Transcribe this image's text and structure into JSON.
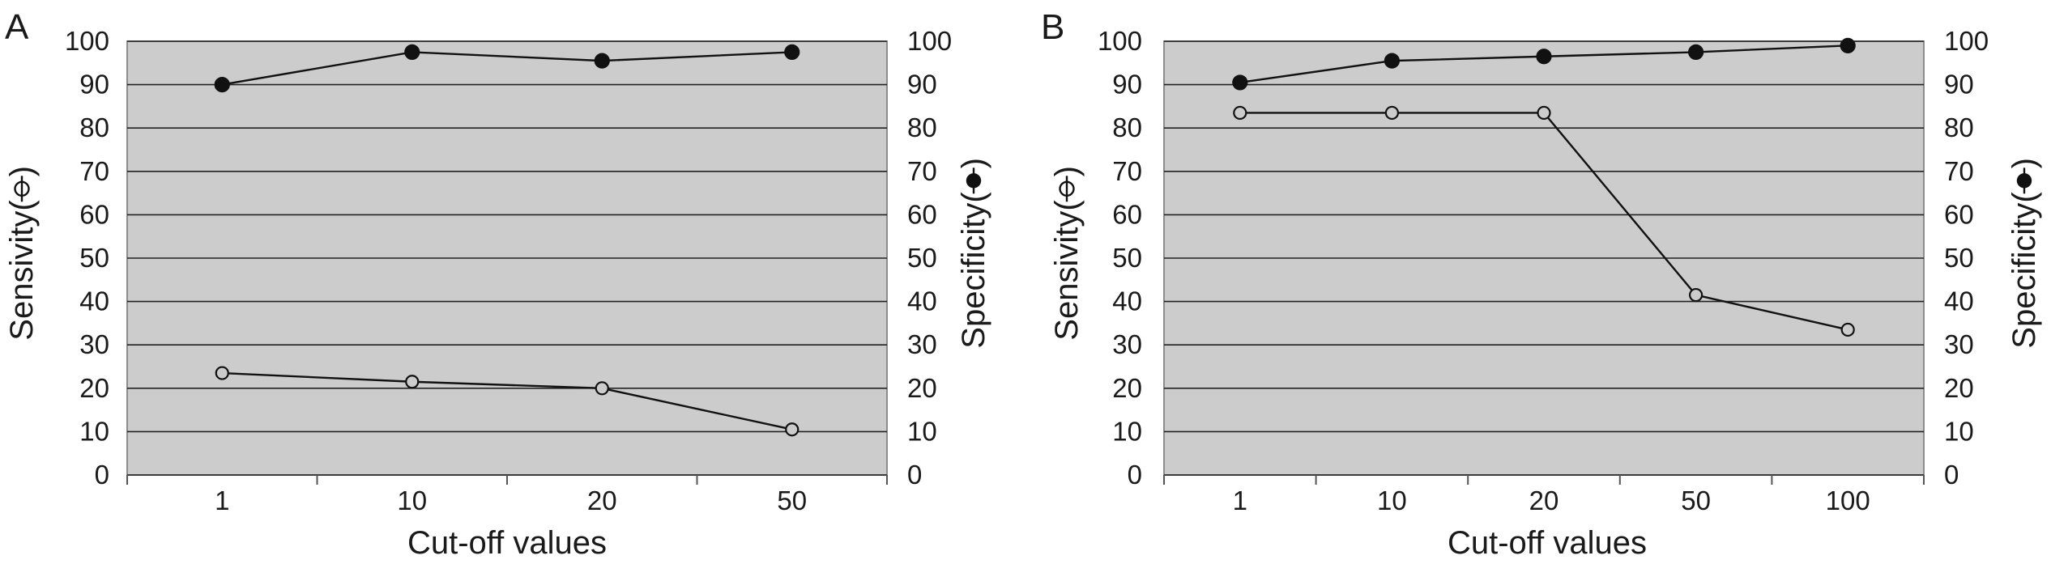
{
  "figure": {
    "panels": [
      {
        "letter": "A"
      },
      {
        "letter": "B"
      }
    ]
  },
  "chart_data": [
    {
      "type": "line",
      "panel": "A",
      "categories": [
        "1",
        "10",
        "20",
        "50"
      ],
      "xlabel": "Cut-off values",
      "ylabel_left": "Sensivity(",
      "ylabel_right": "Specificity(",
      "ylim": [
        0,
        100
      ],
      "yticks": [
        0,
        10,
        20,
        30,
        40,
        50,
        60,
        70,
        80,
        90,
        100
      ],
      "grid": true,
      "plot_background": "#cccccc",
      "series": [
        {
          "marker": "filled-circle",
          "axis": "right",
          "values": [
            90,
            97.5,
            95.5,
            97.5
          ]
        },
        {
          "marker": "open-circle",
          "axis": "left",
          "values": [
            23.5,
            21.5,
            20,
            10.5
          ]
        }
      ]
    },
    {
      "type": "line",
      "panel": "B",
      "categories": [
        "1",
        "10",
        "20",
        "50",
        "100"
      ],
      "xlabel": "Cut-off values",
      "ylabel_left": "Sensivity(",
      "ylabel_right": "Specificity(",
      "ylim": [
        0,
        100
      ],
      "yticks": [
        0,
        10,
        20,
        30,
        40,
        50,
        60,
        70,
        80,
        90,
        100
      ],
      "grid": true,
      "plot_background": "#cccccc",
      "series": [
        {
          "marker": "filled-circle",
          "axis": "right",
          "values": [
            90.5,
            95.5,
            96.5,
            97.5,
            99
          ]
        },
        {
          "marker": "open-circle",
          "axis": "left",
          "values": [
            83.5,
            83.5,
            83.5,
            41.5,
            33.5
          ]
        }
      ]
    }
  ]
}
